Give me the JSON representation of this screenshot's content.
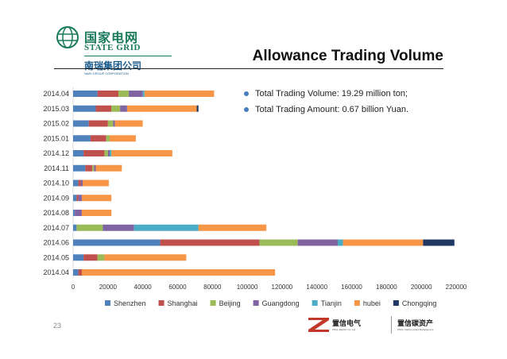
{
  "header": {
    "logo_cn": "国家电网",
    "logo_en": "STATE GRID",
    "logo_sub_cn": "南瑞集团公司",
    "logo_sub_en": "NARI GROUP CORPORATION",
    "title": "Allowance Trading Volume"
  },
  "notes": [
    "Total Trading Volume: 19.29 million ton;",
    "Total Trading Amount: 0.67 billion Yuan."
  ],
  "page_number": "23",
  "footer": {
    "brand1_cn": "置信电气",
    "brand1_en": "Zhixin Electric Co.,Ltd",
    "brand2_cn": "置信碳资产",
    "brand2_en": "Zhixin Carbon Asset Management"
  },
  "colors": {
    "Shenzhen": "#4f81bd",
    "Shanghai": "#c0504d",
    "Beijing": "#9bbb59",
    "Guangdong": "#8064a2",
    "Tianjin": "#4bacc6",
    "hubei": "#f79646",
    "Chongqing": "#1f3864"
  },
  "chart_data": {
    "type": "bar",
    "orientation": "horizontal",
    "stacked": true,
    "categories": [
      "2014.04",
      "2015.03",
      "2015.02",
      "2015.01",
      "2014.12",
      "2014.11",
      "2014.10",
      "2014.09",
      "2014.08",
      "2014.07",
      "2014.06",
      "2014.05",
      "2014.04"
    ],
    "series": [
      {
        "name": "Shenzhen",
        "values": [
          14000,
          13000,
          9000,
          10000,
          6000,
          7000,
          3000,
          2000,
          1000,
          2000,
          50000,
          6000,
          3000
        ]
      },
      {
        "name": "Shanghai",
        "values": [
          12000,
          9000,
          11000,
          9000,
          12000,
          4000,
          1500,
          1000,
          0,
          0,
          57000,
          8000,
          2000
        ]
      },
      {
        "name": "Beijing",
        "values": [
          6000,
          5000,
          3000,
          2000,
          2000,
          1000,
          0,
          0,
          0,
          15000,
          22000,
          4000,
          0
        ]
      },
      {
        "name": "Guangdong",
        "values": [
          8000,
          4000,
          1000,
          0,
          1000,
          1000,
          1000,
          2000,
          4000,
          18000,
          23000,
          0,
          0
        ]
      },
      {
        "name": "Tianjin",
        "values": [
          1000,
          0,
          0,
          0,
          1000,
          0,
          0,
          0,
          0,
          37000,
          3000,
          0,
          0
        ]
      },
      {
        "name": "hubei",
        "values": [
          40000,
          40000,
          16000,
          15000,
          35000,
          15000,
          15000,
          17000,
          17000,
          39000,
          46000,
          47000,
          111000
        ]
      },
      {
        "name": "Chongqing",
        "values": [
          0,
          1000,
          0,
          0,
          0,
          0,
          0,
          0,
          0,
          0,
          18000,
          0,
          0
        ]
      }
    ],
    "xlim": [
      0,
      220000
    ],
    "xticks": [
      "0",
      "20000",
      "40000",
      "60000",
      "80000",
      "100000",
      "120000",
      "140000",
      "160000",
      "180000",
      "200000",
      "220000"
    ],
    "legend_position": "bottom",
    "grid": false
  }
}
